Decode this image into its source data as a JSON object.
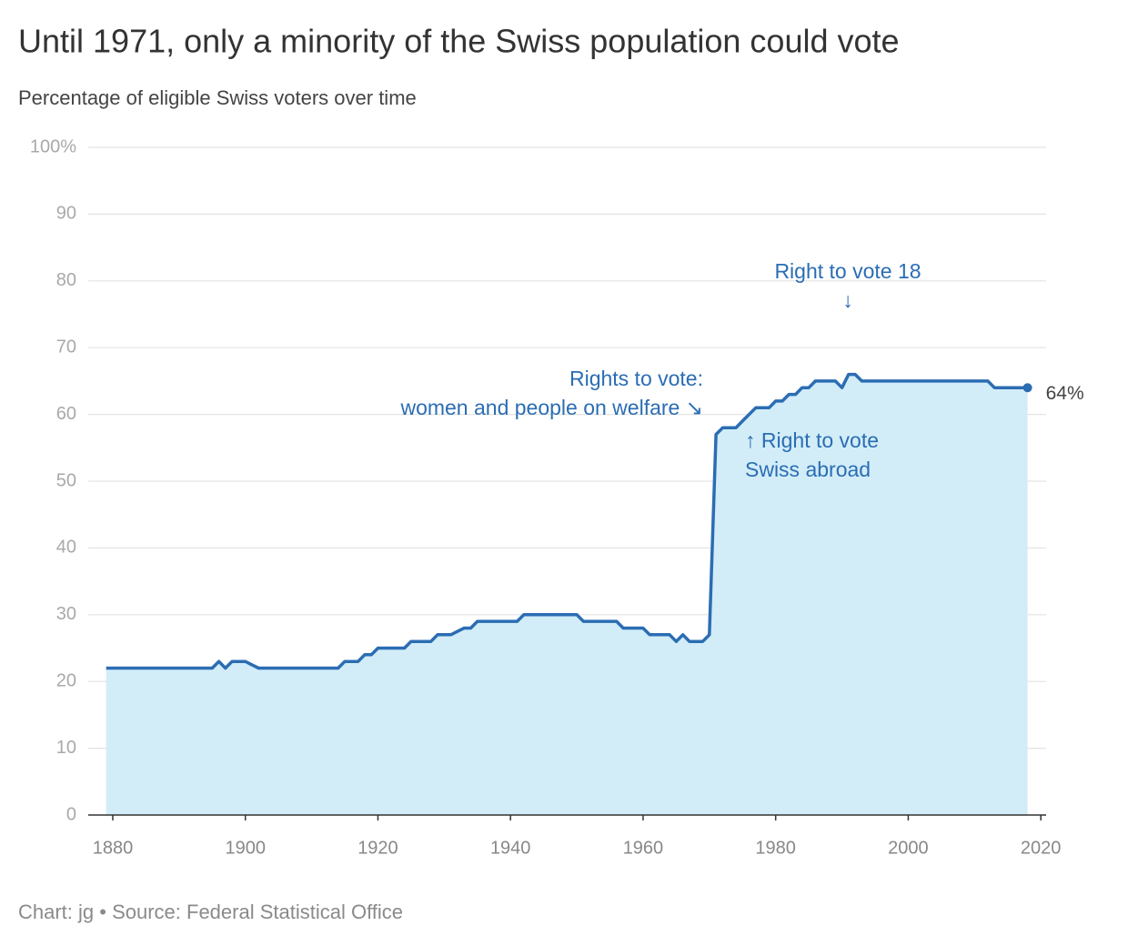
{
  "chart_data": {
    "type": "area",
    "title": "Until 1971, only a minority of the Swiss population could vote",
    "subtitle": "Percentage of eligible Swiss voters over time",
    "source": "Chart: jg • Source: Federal Statistical Office",
    "x": [
      1879,
      1895,
      1896,
      1897,
      1898,
      1900,
      1901,
      1902,
      1914,
      1915,
      1917,
      1918,
      1919,
      1920,
      1924,
      1925,
      1928,
      1929,
      1931,
      1933,
      1934,
      1935,
      1941,
      1942,
      1950,
      1951,
      1956,
      1957,
      1960,
      1961,
      1964,
      1965,
      1966,
      1967,
      1969,
      1970,
      1971,
      1972,
      1974,
      1975,
      1977,
      1979,
      1980,
      1981,
      1982,
      1983,
      1984,
      1985,
      1986,
      1989,
      1990,
      1991,
      1992,
      1993,
      2012,
      2013,
      2018
    ],
    "values": [
      22,
      22,
      23,
      22,
      23,
      23,
      22.5,
      22,
      22,
      23,
      23,
      24,
      24,
      25,
      25,
      26,
      26,
      27,
      27,
      28,
      28,
      29,
      29,
      30,
      30,
      29,
      29,
      28,
      28,
      27,
      27,
      26,
      27,
      26,
      26,
      27,
      57,
      58,
      58,
      59,
      61,
      61,
      62,
      62,
      63,
      63,
      64,
      64,
      65,
      65,
      64,
      66,
      66,
      65,
      65,
      64,
      64
    ],
    "value_labels": [
      null,
      null,
      null,
      null,
      null,
      null,
      null,
      null,
      null,
      null,
      null,
      null,
      null,
      null,
      null,
      null,
      null,
      null,
      null,
      null,
      null,
      null,
      null,
      null,
      null,
      null,
      null,
      null,
      null,
      null,
      null,
      null,
      null,
      null,
      null,
      null,
      null,
      null,
      null,
      null,
      null,
      null,
      null,
      null,
      null,
      null,
      null,
      null,
      null,
      null,
      null,
      null,
      null,
      null,
      null,
      null,
      "64%"
    ],
    "color": "#2b6db3",
    "fill_color": "#d2edf8",
    "xlim": [
      1876.3,
      2020.8
    ],
    "xticks": [
      1880,
      1900,
      1920,
      1940,
      1960,
      1980,
      2000,
      2020
    ],
    "ylim": [
      0,
      100
    ],
    "yticks": [
      0,
      10,
      20,
      30,
      40,
      50,
      60,
      70,
      80,
      90,
      {
        "value": 100,
        "label": "100%"
      }
    ],
    "grid": true,
    "annotations": [
      {
        "lines": [
          "Rights to vote:",
          "women and people on welfare ↘"
        ]
      },
      {
        "lines": [
          "Right to vote 18",
          "↓"
        ]
      },
      {
        "lines": [
          "↑ Right to vote",
          "Swiss abroad"
        ]
      }
    ]
  }
}
